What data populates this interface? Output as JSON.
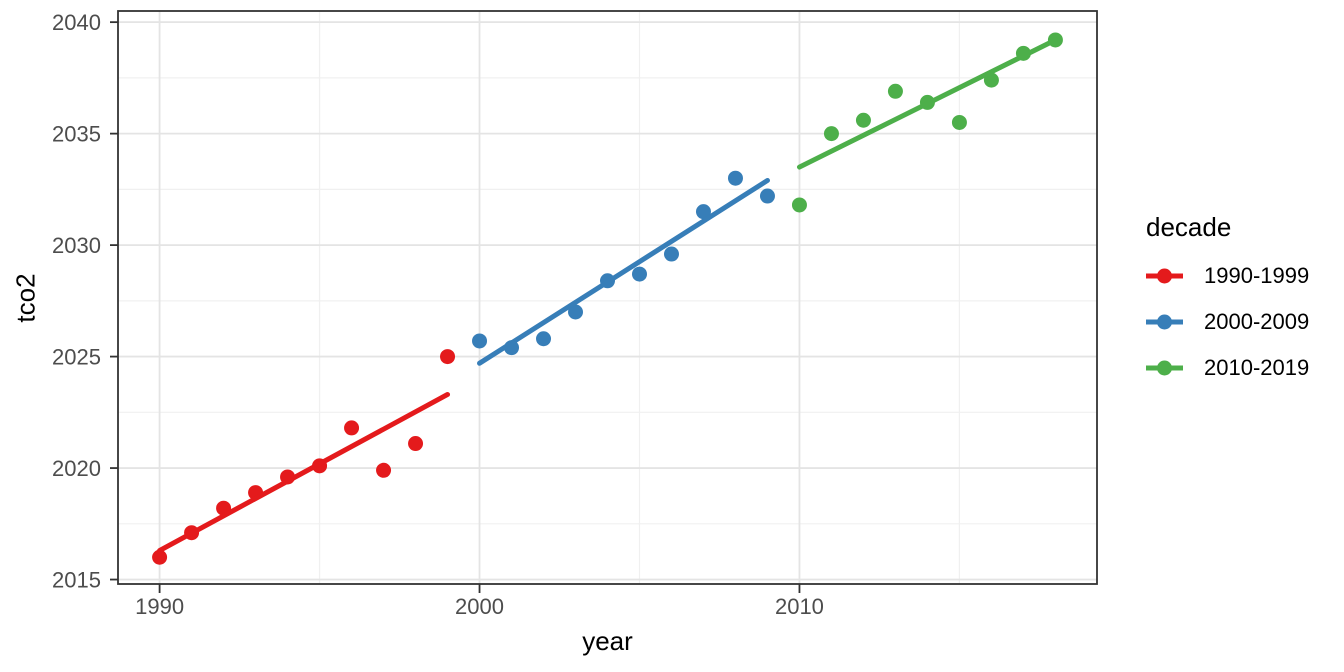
{
  "figure": {
    "background": "#FFFFFF",
    "panel_background": "#FFFFFF",
    "panel_border_color": "#333333",
    "grid_major_color": "#E4E4E4",
    "grid_minor_color": "#F0F0F0",
    "tick_label_color": "#4D4D4D",
    "axis_title_color": "#000000"
  },
  "legend": {
    "title": "decade",
    "position": "right",
    "items": [
      {
        "label": "1990-1999",
        "color": "#E41A1C"
      },
      {
        "label": "2000-2009",
        "color": "#377EB8"
      },
      {
        "label": "2010-2019",
        "color": "#4DAF4A"
      }
    ]
  },
  "chart_data": {
    "type": "scatter",
    "title": "",
    "xlabel": "year",
    "ylabel": "tco2",
    "xlim": [
      1988.7,
      2019.3
    ],
    "ylim": [
      2014.8,
      2040.5
    ],
    "x_ticks": [
      1990,
      2000,
      2010
    ],
    "x_minor_ticks": [
      1995,
      2005,
      2015
    ],
    "y_ticks": [
      2015,
      2020,
      2025,
      2030,
      2035,
      2040
    ],
    "y_minor_ticks": [
      2017.5,
      2022.5,
      2027.5,
      2032.5,
      2037.5
    ],
    "grid": true,
    "legend_position": "right",
    "legend_title": "decade",
    "point_radius": 7.5,
    "line_width": 5,
    "series": [
      {
        "name": "1990-1999",
        "color": "#E41A1C",
        "x": [
          1990,
          1991,
          1992,
          1993,
          1994,
          1995,
          1996,
          1997,
          1998,
          1999
        ],
        "y": [
          2016.0,
          2017.1,
          2018.2,
          2018.9,
          2019.6,
          2020.1,
          2021.8,
          2019.9,
          2021.1,
          2025.0
        ],
        "trend": {
          "x1": 1990,
          "y1": 2016.3,
          "x2": 1999,
          "y2": 2023.3
        }
      },
      {
        "name": "2000-2009",
        "color": "#377EB8",
        "x": [
          2000,
          2001,
          2002,
          2003,
          2004,
          2005,
          2006,
          2007,
          2008,
          2009
        ],
        "y": [
          2025.7,
          2025.4,
          2025.8,
          2027.0,
          2028.4,
          2028.7,
          2029.6,
          2031.5,
          2033.0,
          2032.2
        ],
        "trend": {
          "x1": 2000,
          "y1": 2024.7,
          "x2": 2009,
          "y2": 2032.9
        }
      },
      {
        "name": "2010-2019",
        "color": "#4DAF4A",
        "x": [
          2010,
          2011,
          2012,
          2013,
          2014,
          2015,
          2016,
          2017,
          2018
        ],
        "y": [
          2031.8,
          2035.0,
          2035.6,
          2036.9,
          2036.4,
          2035.5,
          2037.4,
          2038.6,
          2039.2
        ],
        "trend": {
          "x1": 2010,
          "y1": 2033.5,
          "x2": 2018,
          "y2": 2039.2
        }
      }
    ]
  }
}
